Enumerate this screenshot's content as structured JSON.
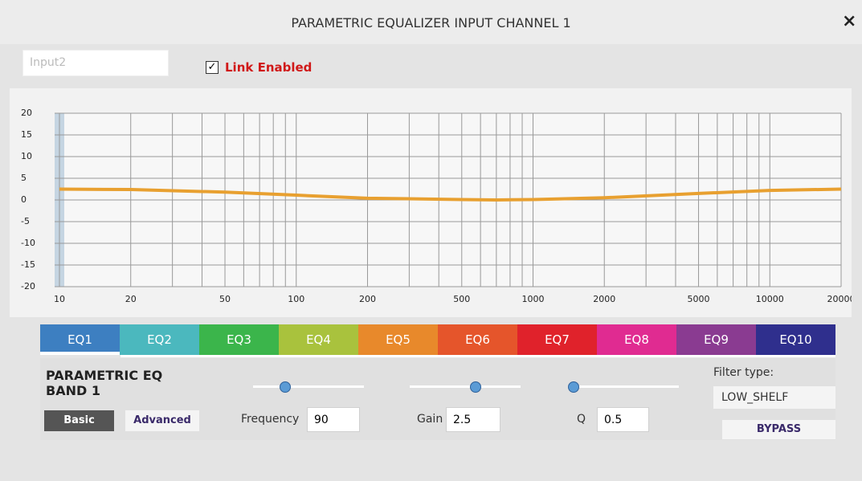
{
  "dialog": {
    "title": "PARAMETRIC EQUALIZER INPUT CHANNEL 1",
    "close": "×"
  },
  "input_name": "Input2",
  "link": {
    "label": "Link Enabled",
    "checked": true
  },
  "chart_data": {
    "type": "line",
    "x": [
      10,
      20,
      50,
      100,
      200,
      500,
      700,
      1000,
      2000,
      5000,
      10000,
      20000
    ],
    "series": [
      {
        "color": "#e8a030",
        "values": [
          2.5,
          2.4,
          1.8,
          1.1,
          0.4,
          0.1,
          0,
          0.1,
          0.5,
          1.5,
          2.2,
          2.5
        ]
      }
    ],
    "xlim": [
      10,
      20000
    ],
    "ylim": [
      -20,
      20
    ],
    "xscale": "log",
    "xticks": [
      10,
      20,
      50,
      100,
      200,
      500,
      1000,
      2000,
      5000,
      10000,
      20000
    ],
    "xgrid": [
      10,
      20,
      30,
      40,
      50,
      60,
      70,
      80,
      90,
      100,
      200,
      300,
      400,
      500,
      600,
      700,
      800,
      900,
      1000,
      2000,
      3000,
      4000,
      5000,
      6000,
      7000,
      8000,
      9000,
      10000,
      20000
    ],
    "yticks": [
      -20,
      -15,
      -10,
      -5,
      0,
      5,
      10,
      15,
      20
    ],
    "grid": true
  },
  "tabs": {
    "selected": 0,
    "items": [
      {
        "label": "EQ1",
        "color": "#3d7fc1"
      },
      {
        "label": "EQ2",
        "color": "#4bb8be"
      },
      {
        "label": "EQ3",
        "color": "#3bb54b"
      },
      {
        "label": "EQ4",
        "color": "#a9c23d"
      },
      {
        "label": "EQ5",
        "color": "#e8892b"
      },
      {
        "label": "EQ6",
        "color": "#e5552b"
      },
      {
        "label": "EQ7",
        "color": "#e0222b"
      },
      {
        "label": "EQ8",
        "color": "#e02b91"
      },
      {
        "label": "EQ9",
        "color": "#8a3b91"
      },
      {
        "label": "EQ10",
        "color": "#2f2f8d"
      }
    ]
  },
  "band": {
    "title": "PARAMETRIC EQ BAND 1",
    "basic": "Basic",
    "advanced": "Advanced",
    "frequency": {
      "label": "Frequency",
      "value": "90"
    },
    "gain": {
      "label": "Gain",
      "value": "2.5"
    },
    "q": {
      "label": "Q",
      "value": "0.5"
    },
    "filter_type": {
      "label": "Filter type:",
      "value": "LOW_SHELF"
    },
    "bypass": "BYPASS"
  }
}
